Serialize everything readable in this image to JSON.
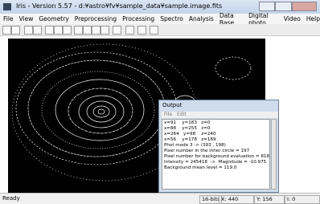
{
  "window": {
    "title": "Iris - Version 5.57 - d:¥astro¥fv¥sample_data¥sample.image.fits"
  },
  "menu": [
    "File",
    "View",
    "Geometry",
    "Preprocessing",
    "Processing",
    "Spectro",
    "Analysis",
    "Data Base",
    "Digital photo",
    "Video",
    "Help"
  ],
  "output": {
    "title": "Output",
    "menu": [
      "File",
      "Edit"
    ],
    "lines": [
      "x=91    y=183   z=0",
      "x=88    y=255   z=0",
      "x=264   y=98    z=240",
      "x=56    y=178   z=189",
      "Phot mode 3 -> (393 , 198)",
      "Pixel number in the inner circle = 197",
      "Pixel number for background evaluation = 818",
      "Intensity = 245418  ->  Magnitude = -10.975",
      "Background mean level = 119.0"
    ]
  },
  "status": {
    "left": "Ready",
    "depth": "16-bits",
    "x": "X: 440",
    "y": "Y: 156",
    "i": "I: 0"
  }
}
